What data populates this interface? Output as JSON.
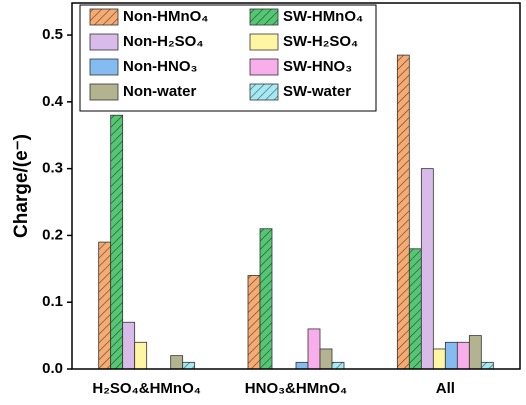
{
  "chart_data": {
    "type": "bar",
    "y_label": "Charge/(e⁻)",
    "categories": [
      "H₂SO₄&HMnO₄",
      "HNO₃&HMnO₄",
      "All"
    ],
    "series": [
      {
        "name": "Non-HMnO₄",
        "color": "#f6ab72",
        "hatch": true,
        "values": [
          0.19,
          0.14,
          0.47
        ]
      },
      {
        "name": "SW-HMnO₄",
        "color": "#55c774",
        "hatch": true,
        "values": [
          0.38,
          0.21,
          0.18
        ]
      },
      {
        "name": "Non-H₂SO₄",
        "color": "#d8bbe9",
        "hatch": false,
        "values": [
          0.07,
          null,
          0.3
        ]
      },
      {
        "name": "SW-H₂SO₄",
        "color": "#fff6a3",
        "hatch": false,
        "values": [
          0.04,
          null,
          0.03
        ]
      },
      {
        "name": "Non-HNO₃",
        "color": "#84bcf2",
        "hatch": false,
        "values": [
          null,
          0.01,
          0.04
        ]
      },
      {
        "name": "SW-HNO₃",
        "color": "#f7aeea",
        "hatch": false,
        "values": [
          null,
          0.06,
          0.04
        ]
      },
      {
        "name": "Non-water",
        "color": "#b3b38f",
        "hatch": false,
        "values": [
          0.02,
          0.03,
          0.05
        ]
      },
      {
        "name": "SW-water",
        "color": "#a6e9f2",
        "hatch": true,
        "values": [
          0.01,
          0.01,
          0.01
        ]
      }
    ],
    "ylim": [
      0,
      0.548
    ],
    "yticks": [
      {
        "value": 0,
        "label": "0.0"
      },
      0.1,
      0.2,
      0.3,
      0.4,
      0.5
    ],
    "legend": "upper left"
  }
}
